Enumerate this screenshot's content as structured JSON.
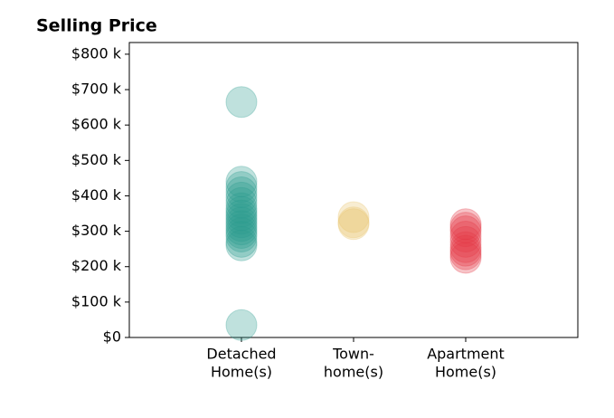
{
  "chart_data": {
    "type": "strip",
    "title": "Selling Price",
    "categories": [
      [
        "Detached",
        "Home(s)"
      ],
      [
        "Town-",
        "home(s)"
      ],
      [
        "Apartment",
        "Home(s)"
      ]
    ],
    "points": [
      [
        665,
        35,
        440,
        425,
        410,
        395,
        380,
        365,
        355,
        345,
        335,
        325,
        315,
        305,
        295,
        285,
        270,
        260
      ],
      [
        340,
        325,
        320
      ],
      [
        320,
        310,
        300,
        285,
        270,
        255,
        245,
        235,
        225
      ]
    ],
    "colors": [
      "#2a9d8f",
      "#e9c46a",
      "#e63946"
    ],
    "ylim": [
      0,
      833
    ],
    "yticks": [
      {
        "value": 0,
        "label": "$0"
      },
      {
        "value": 100,
        "label": "$100 k"
      },
      {
        "value": 200,
        "label": "$200 k"
      },
      {
        "value": 300,
        "label": "$300 k"
      },
      {
        "value": 400,
        "label": "$400 k"
      },
      {
        "value": 500,
        "label": "$500 k"
      },
      {
        "value": 600,
        "label": "$600 k"
      },
      {
        "value": 700,
        "label": "$700 k"
      },
      {
        "value": 800,
        "label": "$800 k"
      }
    ]
  }
}
